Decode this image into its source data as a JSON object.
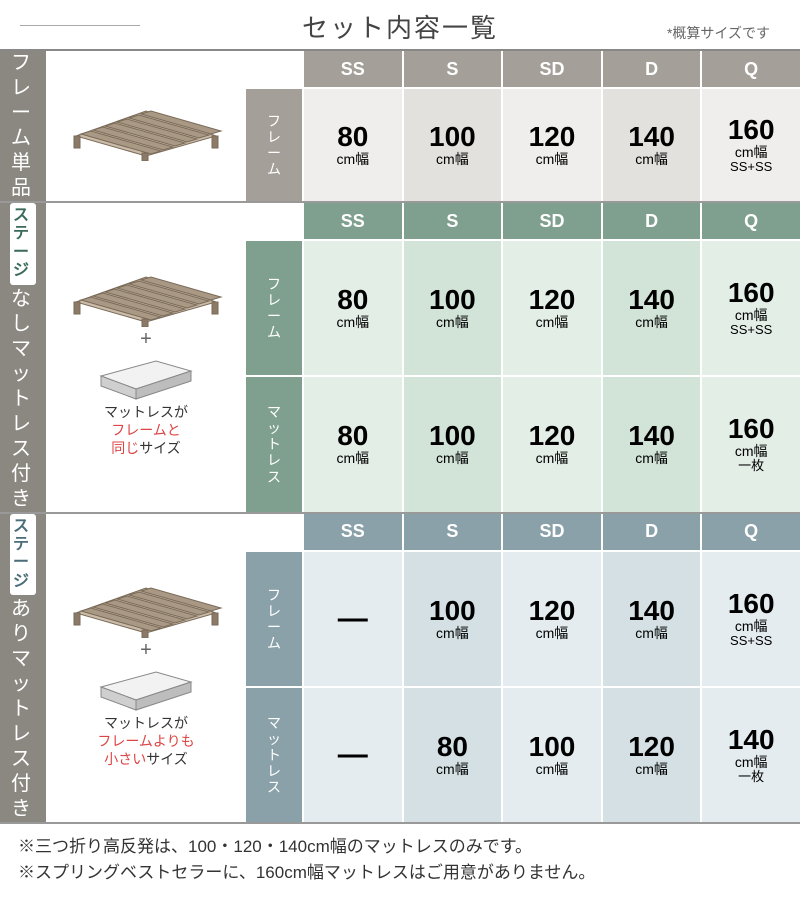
{
  "title": "セット内容一覧",
  "subtitle": "*概算サイズです",
  "size_headers": [
    "SS",
    "S",
    "SD",
    "D",
    "Q"
  ],
  "row_labels": {
    "frame": "フレーム",
    "mattress": "マットレス"
  },
  "sections": [
    {
      "id": "s1",
      "vlabel_badge": null,
      "vlabel_chars": [
        "フ",
        "レ",
        "ー",
        "ム",
        "単",
        "品"
      ],
      "caption": null,
      "rows": [
        {
          "label_key": "frame",
          "cells": [
            {
              "big": "80",
              "sm": "cm幅",
              "xs": null
            },
            {
              "big": "100",
              "sm": "cm幅",
              "xs": null
            },
            {
              "big": "120",
              "sm": "cm幅",
              "xs": null
            },
            {
              "big": "140",
              "sm": "cm幅",
              "xs": null
            },
            {
              "big": "160",
              "sm": "cm幅",
              "xs": "SS+SS"
            }
          ]
        }
      ],
      "show_mattress_img": false
    },
    {
      "id": "s2",
      "vlabel_badge": {
        "chars": [
          "ス",
          "テ",
          "ー",
          "ジ"
        ],
        "suffix": "なし",
        "cls": "green"
      },
      "vlabel_chars": [
        "マ",
        "ッ",
        "ト",
        "レ",
        "ス",
        "付",
        "き"
      ],
      "caption_parts": [
        "マットレスが",
        {
          "red": true,
          "t": "フレームと"
        },
        {
          "red": true,
          "t": "同じ"
        },
        "サイズ"
      ],
      "rows": [
        {
          "label_key": "frame",
          "cells": [
            {
              "big": "80",
              "sm": "cm幅",
              "xs": null
            },
            {
              "big": "100",
              "sm": "cm幅",
              "xs": null
            },
            {
              "big": "120",
              "sm": "cm幅",
              "xs": null
            },
            {
              "big": "140",
              "sm": "cm幅",
              "xs": null
            },
            {
              "big": "160",
              "sm": "cm幅",
              "xs": "SS+SS"
            }
          ]
        },
        {
          "label_key": "mattress",
          "cells": [
            {
              "big": "80",
              "sm": "cm幅",
              "xs": null
            },
            {
              "big": "100",
              "sm": "cm幅",
              "xs": null
            },
            {
              "big": "120",
              "sm": "cm幅",
              "xs": null
            },
            {
              "big": "140",
              "sm": "cm幅",
              "xs": null
            },
            {
              "big": "160",
              "sm": "cm幅",
              "xs": "一枚"
            }
          ]
        }
      ],
      "show_mattress_img": true
    },
    {
      "id": "s3",
      "vlabel_badge": {
        "chars": [
          "ス",
          "テ",
          "ー",
          "ジ"
        ],
        "suffix": "あり",
        "cls": "blue"
      },
      "vlabel_chars": [
        "マ",
        "ッ",
        "ト",
        "レ",
        "ス",
        "付",
        "き"
      ],
      "caption_parts": [
        "マットレスが",
        {
          "red": true,
          "t": "フレームよりも"
        },
        {
          "red": true,
          "t": "小さい"
        },
        "サイズ"
      ],
      "rows": [
        {
          "label_key": "frame",
          "cells": [
            {
              "big": "—",
              "sm": null,
              "xs": null,
              "dash": true
            },
            {
              "big": "100",
              "sm": "cm幅",
              "xs": null
            },
            {
              "big": "120",
              "sm": "cm幅",
              "xs": null
            },
            {
              "big": "140",
              "sm": "cm幅",
              "xs": null
            },
            {
              "big": "160",
              "sm": "cm幅",
              "xs": "SS+SS"
            }
          ]
        },
        {
          "label_key": "mattress",
          "cells": [
            {
              "big": "—",
              "sm": null,
              "xs": null,
              "dash": true
            },
            {
              "big": "80",
              "sm": "cm幅",
              "xs": null
            },
            {
              "big": "100",
              "sm": "cm幅",
              "xs": null
            },
            {
              "big": "120",
              "sm": "cm幅",
              "xs": null
            },
            {
              "big": "140",
              "sm": "cm幅",
              "xs": "一枚"
            }
          ]
        }
      ],
      "show_mattress_img": true
    }
  ],
  "footer": [
    "※三つ折り高反発は、100・120・140cm幅のマットレスのみです。",
    "※スプリングベストセラーに、160cm幅マットレスはご用意がありません。"
  ],
  "colors": {
    "s1_hdr": "#a4a099",
    "s1_a": "#efeeec",
    "s1_b": "#e3e1dd",
    "s2_hdr": "#7fa08f",
    "s2_a": "#e3eee7",
    "s2_b": "#d2e3d8",
    "s3_hdr": "#8aa1a9",
    "s3_a": "#e4ecef",
    "s3_b": "#d4e0e4",
    "vert": "#8b8781",
    "red": "#d44"
  }
}
